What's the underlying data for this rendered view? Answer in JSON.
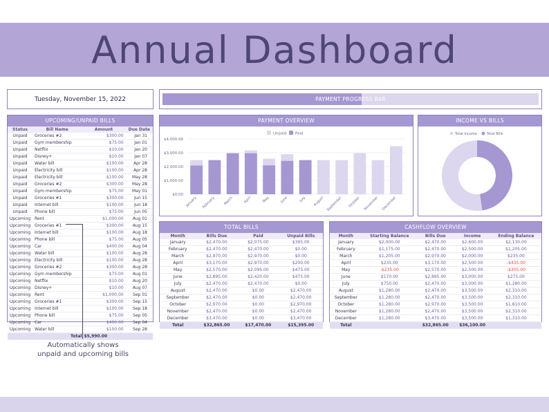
{
  "title": "Annual Dashboard",
  "date": "Tuesday, November 15, 2022",
  "progress": {
    "label": "PAYMENT PROGRESS BAR",
    "fraction": 0.53
  },
  "upcoming": {
    "title": "UPCOMING/UNPAID BILLS",
    "headers": [
      "Status",
      "Bill Name",
      "Amount",
      "Due Date"
    ],
    "rows": [
      [
        "Unpaid",
        "Groceries #2",
        "$300.00",
        "Jan 31"
      ],
      [
        "Unpaid",
        "Gym membership",
        "$75.00",
        "Jan 01"
      ],
      [
        "Unpaid",
        "Netflix",
        "$10.00",
        "Jan 20"
      ],
      [
        "Unpaid",
        "Disney+",
        "$10.00",
        "Jan 07"
      ],
      [
        "Unpaid",
        "Water bill",
        "$100.00",
        "Apr 28"
      ],
      [
        "Unpaid",
        "Electricity bill",
        "$100.00",
        "Apr 28"
      ],
      [
        "Unpaid",
        "Electricity bill",
        "$100.00",
        "May 28"
      ],
      [
        "Unpaid",
        "Groceries #2",
        "$300.00",
        "May 28"
      ],
      [
        "Unpaid",
        "Gym membership",
        "$75.00",
        "May 01"
      ],
      [
        "Unpaid",
        "Groceries #1",
        "$300.00",
        "Jun 15"
      ],
      [
        "Unpaid",
        "Internet bill",
        "$100.00",
        "Jun 18"
      ],
      [
        "Unpaid",
        "Phone bill",
        "$75.00",
        "Jun 05"
      ],
      [
        "Upcoming",
        "Rent",
        "$1,000.00",
        "Aug 01"
      ],
      [
        "Upcoming",
        "Groceries #1",
        "$300.00",
        "Aug 15"
      ],
      [
        "Upcoming",
        "Internet bill",
        "$100.00",
        "Aug 18"
      ],
      [
        "Upcoming",
        "Phone bill",
        "$75.00",
        "Aug 05"
      ],
      [
        "Upcoming",
        "Car",
        "$400.00",
        "Aug 04"
      ],
      [
        "Upcoming",
        "Water bill",
        "$100.00",
        "Aug 28"
      ],
      [
        "Upcoming",
        "Electricity bill",
        "$100.00",
        "Aug 28"
      ],
      [
        "Upcoming",
        "Groceries #2",
        "$300.00",
        "Aug 28"
      ],
      [
        "Upcoming",
        "Gym membership",
        "$75.00",
        "Aug 01"
      ],
      [
        "Upcoming",
        "Netflix",
        "$10.00",
        "Aug 20"
      ],
      [
        "Upcoming",
        "Disney+",
        "$10.00",
        "Aug 07"
      ],
      [
        "Upcoming",
        "Rent",
        "$1,000.00",
        "Sep 01"
      ],
      [
        "Upcoming",
        "Groceries #1",
        "$300.00",
        "Sep 15"
      ],
      [
        "Upcoming",
        "Internet bill",
        "$100.00",
        "Sep 18"
      ],
      [
        "Upcoming",
        "Phone bill",
        "$75.00",
        "Sep 05"
      ],
      [
        "Upcoming",
        "Car",
        "$400.00",
        "Sep 04"
      ],
      [
        "Upcoming",
        "Water bill",
        "$100.00",
        "Sep 28"
      ]
    ],
    "total_label": "Total",
    "total_value": "$5,990.00"
  },
  "payment_overview": {
    "title": "PAYMENT OVERVIEW"
  },
  "income_vs_bills": {
    "title": "INCOME VS BILLS"
  },
  "total_bills": {
    "title": "TOTAL BILLS",
    "headers": [
      "Month",
      "Bills Due",
      "Paid",
      "Unpaid Bills"
    ],
    "rows": [
      [
        "January",
        "$2,470.00",
        "$2,075.00",
        "$395.00"
      ],
      [
        "February",
        "$2,470.00",
        "$2,470.00",
        "$0.00"
      ],
      [
        "March",
        "$2,970.00",
        "$2,970.00",
        "$0.00"
      ],
      [
        "April",
        "$3,170.00",
        "$2,970.00",
        "$200.00"
      ],
      [
        "May",
        "$2,570.00",
        "$2,095.00",
        "$475.00"
      ],
      [
        "June",
        "$2,895.00",
        "$2,420.00",
        "$475.00"
      ],
      [
        "July",
        "$2,470.00",
        "$2,470.00",
        "$0.00"
      ],
      [
        "August",
        "$2,470.00",
        "$0.00",
        "$2,470.00"
      ],
      [
        "September",
        "$2,470.00",
        "$0.00",
        "$2,470.00"
      ],
      [
        "October",
        "$2,970.00",
        "$0.00",
        "$2,970.00"
      ],
      [
        "November",
        "$2,470.00",
        "$0.00",
        "$2,470.00"
      ],
      [
        "December",
        "$3,470.00",
        "$0.00",
        "$3,470.00"
      ]
    ],
    "total": [
      "Total",
      "$32,865.00",
      "$17,470.00",
      "$15,395.00"
    ]
  },
  "cashflow": {
    "title": "CASHFLOW OVERVIEW",
    "headers": [
      "Month",
      "Starting Balance",
      "Bills Due",
      "Income",
      "Ending Balance"
    ],
    "rows": [
      [
        "January",
        "$2,000.00",
        "$2,470.00",
        "$2,600.00",
        "$2,130.00"
      ],
      [
        "February",
        "$1,175.00",
        "$2,470.00",
        "$2,500.00",
        "$1,205.00"
      ],
      [
        "March",
        "$1,205.00",
        "$2,970.00",
        "$2,000.00",
        "$235.00"
      ],
      [
        "April",
        "$235.00",
        "$3,170.00",
        "$2,500.00",
        "-$435.00"
      ],
      [
        "May",
        "-$235.00",
        "$2,570.00",
        "$2,500.00",
        "-$305.00"
      ],
      [
        "June",
        "$170.00",
        "$2,895.00",
        "$3,000.00",
        "$275.00"
      ],
      [
        "July",
        "$750.00",
        "$2,470.00",
        "$3,000.00",
        "$1,280.00"
      ],
      [
        "August",
        "$1,280.00",
        "$2,470.00",
        "$3,500.00",
        "$2,310.00"
      ],
      [
        "September",
        "$1,280.00",
        "$2,470.00",
        "$3,500.00",
        "$2,310.00"
      ],
      [
        "October",
        "$1,280.00",
        "$2,970.00",
        "$3,500.00",
        "$1,810.00"
      ],
      [
        "November",
        "$1,280.00",
        "$2,470.00",
        "$3,500.00",
        "$2,310.00"
      ],
      [
        "December",
        "$1,280.00",
        "$3,470.00",
        "$3,500.00",
        "$1,310.00"
      ]
    ],
    "total": [
      "Total",
      "",
      "$32,865.00",
      "$36,100.00",
      ""
    ]
  },
  "annotation": {
    "line1": "Automatically shows",
    "line2": "unpaid and upcoming bills"
  },
  "colors": {
    "accent": "#a597d1",
    "light": "#dcd6ee",
    "dark": "#4f4673",
    "negative": "#e24a4a"
  },
  "chart_data": [
    {
      "type": "bar",
      "title": "PAYMENT OVERVIEW",
      "stacked": true,
      "categories": [
        "January",
        "February",
        "March",
        "April",
        "May",
        "June",
        "July",
        "August",
        "September",
        "October",
        "November",
        "December"
      ],
      "series": [
        {
          "name": "Paid",
          "values": [
            2075,
            2470,
            2970,
            2970,
            2095,
            2420,
            2470,
            0,
            0,
            0,
            0,
            0
          ]
        },
        {
          "name": "Unpaid",
          "values": [
            395,
            0,
            0,
            200,
            475,
            475,
            0,
            2470,
            2470,
            2970,
            2470,
            3470
          ]
        }
      ],
      "yticks": [
        "$0.00",
        "$1,000.00",
        "$2,000.00",
        "$3,000.00",
        "$4,000.00"
      ],
      "ylim": [
        0,
        4000
      ],
      "legend": "top",
      "grid": true
    },
    {
      "type": "pie",
      "title": "INCOME VS BILLS",
      "donut": true,
      "labels": [
        "Total Income",
        "Total Bills"
      ],
      "values": [
        36100,
        32865
      ],
      "legend": "top"
    }
  ]
}
